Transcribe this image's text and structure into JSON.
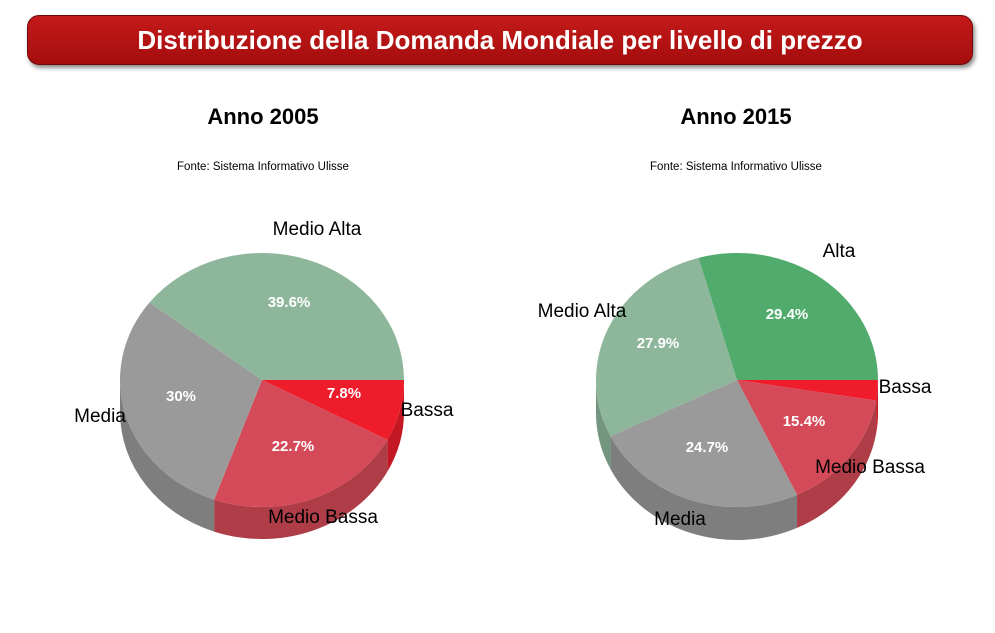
{
  "header": {
    "title": "Distribuzione della Domanda Mondiale per livello di prezzo"
  },
  "colors": {
    "banner": "#b31414",
    "Alta": "#50ab6c",
    "Medio Alta": "#8db69b",
    "Media": "#9a9a9a",
    "Medio Bassa": "#d44a58",
    "Bassa": "#ef1c2c"
  },
  "chart_data": [
    {
      "type": "pie",
      "title": "Anno 2005",
      "subtitle": "Fonte: Sistema Informativo Ulisse",
      "slices": [
        {
          "label": "Bassa",
          "value": 7.8,
          "display": "7.8%"
        },
        {
          "label": "Medio Bassa",
          "value": 22.7,
          "display": "22.7%"
        },
        {
          "label": "Media",
          "value": 30,
          "display": "30%"
        },
        {
          "label": "Medio Alta",
          "value": 39.6,
          "display": "39.6%"
        }
      ]
    },
    {
      "type": "pie",
      "title": "Anno 2015",
      "subtitle": "Fonte: Sistema Informativo Ulisse",
      "slices": [
        {
          "label": "Bassa",
          "value": 2.6,
          "display": ""
        },
        {
          "label": "Medio Bassa",
          "value": 15.4,
          "display": "15.4%"
        },
        {
          "label": "Media",
          "value": 24.7,
          "display": "24.7%"
        },
        {
          "label": "Medio Alta",
          "value": 27.9,
          "display": "27.9%"
        },
        {
          "label": "Alta",
          "value": 29.4,
          "display": "29.4%"
        }
      ]
    }
  ]
}
